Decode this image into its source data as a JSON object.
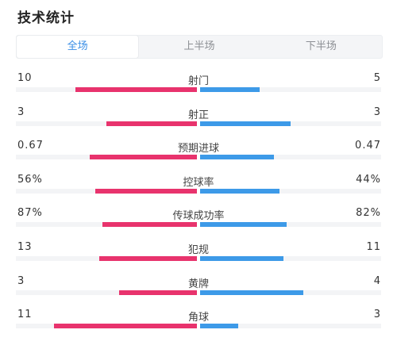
{
  "title": "技术统计",
  "tabs": [
    {
      "label": "全场",
      "active": true
    },
    {
      "label": "上半场",
      "active": false
    },
    {
      "label": "下半场",
      "active": false
    }
  ],
  "colors": {
    "home": "#e8336d",
    "away": "#3d9ae8",
    "active_tab": "#3a8ee6"
  },
  "stats": [
    {
      "label": "射门",
      "home": "10",
      "away": "5",
      "home_ratio": 0.67,
      "away_ratio": 0.33
    },
    {
      "label": "射正",
      "home": "3",
      "away": "3",
      "home_ratio": 0.5,
      "away_ratio": 0.5
    },
    {
      "label": "预期进球",
      "home": "0.67",
      "away": "0.47",
      "home_ratio": 0.59,
      "away_ratio": 0.41
    },
    {
      "label": "控球率",
      "home": "56%",
      "away": "44%",
      "home_ratio": 0.56,
      "away_ratio": 0.44
    },
    {
      "label": "传球成功率",
      "home": "87%",
      "away": "82%",
      "home_ratio": 0.52,
      "away_ratio": 0.48
    },
    {
      "label": "犯规",
      "home": "13",
      "away": "11",
      "home_ratio": 0.54,
      "away_ratio": 0.46
    },
    {
      "label": "黄牌",
      "home": "3",
      "away": "4",
      "home_ratio": 0.43,
      "away_ratio": 0.57
    },
    {
      "label": "角球",
      "home": "11",
      "away": "3",
      "home_ratio": 0.79,
      "away_ratio": 0.21
    }
  ]
}
